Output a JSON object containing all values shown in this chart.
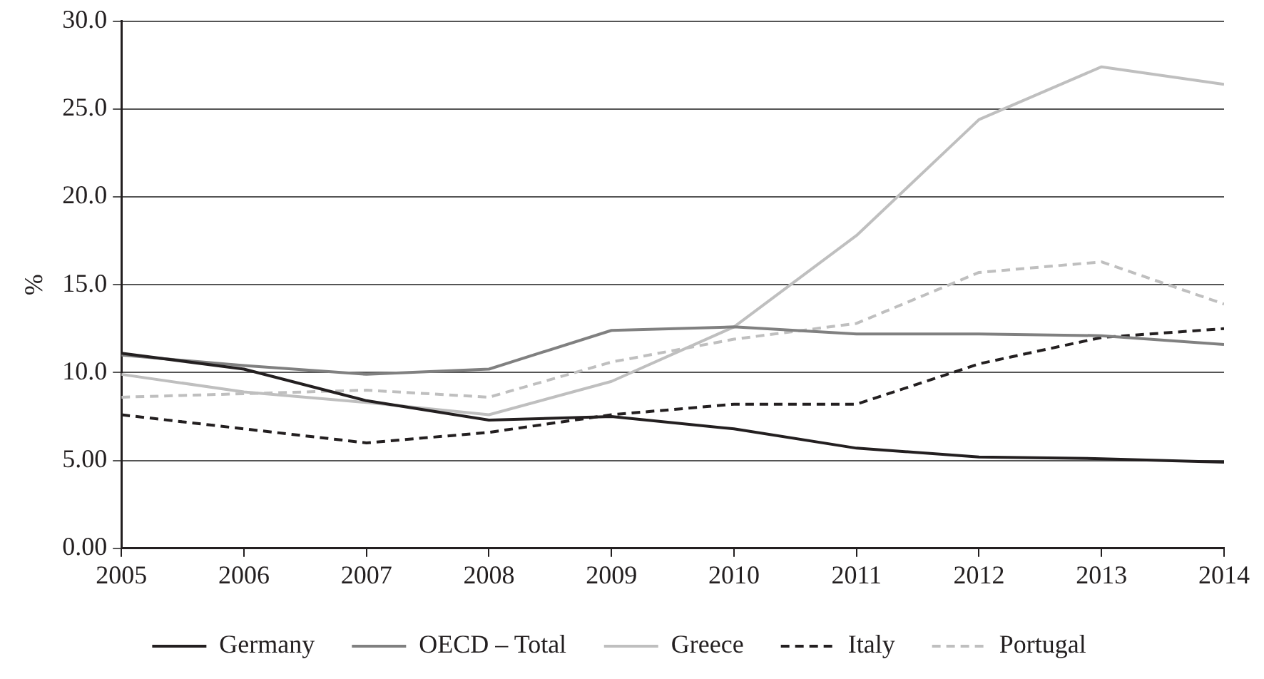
{
  "chart_data": {
    "type": "line",
    "ylabel": "%",
    "x": [
      2005,
      2006,
      2007,
      2008,
      2009,
      2010,
      2011,
      2012,
      2013,
      2014
    ],
    "xlim": [
      2005,
      2014
    ],
    "xticks": [
      2005,
      2006,
      2007,
      2008,
      2009,
      2010,
      2011,
      2012,
      2013,
      2014
    ],
    "ylim": [
      0,
      30
    ],
    "yticks": [
      {
        "value": 0,
        "label": "0.00"
      },
      {
        "value": 5,
        "label": "5.00"
      },
      {
        "value": 10,
        "label": "10.0"
      },
      {
        "value": 15,
        "label": "15.0"
      },
      {
        "value": 20,
        "label": "20.0"
      },
      {
        "value": 25,
        "label": "25.0"
      },
      {
        "value": 30,
        "label": "30.0"
      }
    ],
    "grid": "y",
    "legend": "bottom",
    "marker": "none",
    "series": [
      {
        "name": "Germany",
        "color": "#231f20",
        "line_style": "solid",
        "values": [
          11.1,
          10.2,
          8.4,
          7.3,
          7.5,
          6.8,
          5.7,
          5.2,
          5.1,
          4.9
        ]
      },
      {
        "name": "OECD – Total",
        "color": "#808080",
        "line_style": "solid",
        "values": [
          11.0,
          10.4,
          9.9,
          10.2,
          12.4,
          12.6,
          12.2,
          12.2,
          12.1,
          11.6
        ]
      },
      {
        "name": "Greece",
        "color": "#bfbfbf",
        "line_style": "solid",
        "values": [
          9.9,
          8.9,
          8.3,
          7.6,
          9.5,
          12.6,
          17.8,
          24.4,
          27.4,
          26.4
        ]
      },
      {
        "name": "Italy",
        "color": "#231f20",
        "line_style": "dashed",
        "values": [
          7.6,
          6.8,
          6.0,
          6.6,
          7.6,
          8.2,
          8.2,
          10.5,
          12.0,
          12.5
        ]
      },
      {
        "name": "Portugal",
        "color": "#bfbfbf",
        "line_style": "dashed",
        "values": [
          8.6,
          8.8,
          9.0,
          8.6,
          10.6,
          11.9,
          12.8,
          15.7,
          16.3,
          13.9
        ]
      }
    ]
  }
}
